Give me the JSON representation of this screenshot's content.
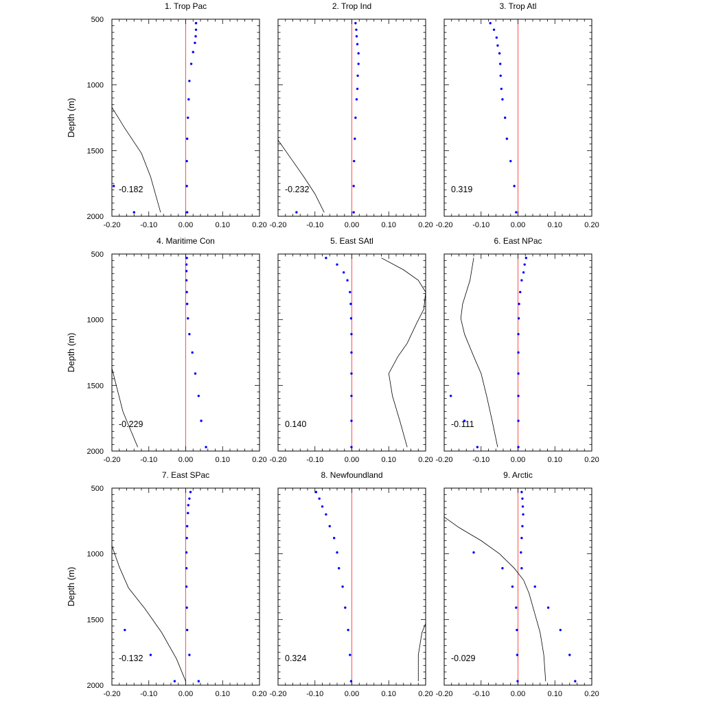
{
  "figure": {
    "y_axis_label": "Depth (m)",
    "x_ticks": [
      "-0.20",
      "-0.10",
      "0.00",
      "0.10",
      "0.20"
    ],
    "y_ticks": [
      "500",
      "1000",
      "1500",
      "2000"
    ],
    "colors": {
      "dots": "#0000ff",
      "zero_line": "#ff4d4d",
      "curve": "#000000",
      "axes": "#000000"
    }
  },
  "chart_data": [
    {
      "type": "scatter",
      "title": "1. Trop Pac",
      "annotation": "-0.182",
      "xlim": [
        -0.2,
        0.2
      ],
      "ylim": [
        500,
        2000
      ],
      "y_inverted": true,
      "points": [
        [
          0.028,
          530
        ],
        [
          0.028,
          580
        ],
        [
          0.027,
          630
        ],
        [
          0.025,
          680
        ],
        [
          0.02,
          750
        ],
        [
          0.015,
          840
        ],
        [
          0.01,
          970
        ],
        [
          0.008,
          1110
        ],
        [
          0.006,
          1250
        ],
        [
          0.004,
          1410
        ],
        [
          0.003,
          1580
        ],
        [
          0.003,
          1770
        ],
        [
          -0.195,
          1770
        ],
        [
          0.004,
          1970
        ],
        [
          -0.14,
          1970
        ]
      ],
      "line": [
        [
          -0.2,
          1170
        ],
        [
          -0.165,
          1330
        ],
        [
          -0.12,
          1520
        ],
        [
          -0.095,
          1700
        ],
        [
          -0.068,
          1970
        ]
      ]
    },
    {
      "type": "scatter",
      "title": "2. Trop Ind",
      "annotation": "-0.232",
      "xlim": [
        -0.2,
        0.2
      ],
      "ylim": [
        500,
        2000
      ],
      "y_inverted": true,
      "points": [
        [
          0.01,
          530
        ],
        [
          0.012,
          580
        ],
        [
          0.013,
          630
        ],
        [
          0.015,
          690
        ],
        [
          0.018,
          760
        ],
        [
          0.018,
          840
        ],
        [
          0.016,
          930
        ],
        [
          0.015,
          1030
        ],
        [
          0.013,
          1110
        ],
        [
          0.01,
          1250
        ],
        [
          0.008,
          1410
        ],
        [
          0.006,
          1580
        ],
        [
          0.005,
          1770
        ],
        [
          0.005,
          1970
        ],
        [
          -0.15,
          1970
        ]
      ],
      "line": [
        [
          -0.2,
          1420
        ],
        [
          -0.165,
          1560
        ],
        [
          -0.13,
          1700
        ],
        [
          -0.1,
          1830
        ],
        [
          -0.075,
          1970
        ]
      ]
    },
    {
      "type": "scatter",
      "title": "3. Trop Atl",
      "annotation": "0.319",
      "xlim": [
        -0.2,
        0.2
      ],
      "ylim": [
        500,
        2000
      ],
      "y_inverted": true,
      "points": [
        [
          -0.075,
          530
        ],
        [
          -0.065,
          580
        ],
        [
          -0.058,
          640
        ],
        [
          -0.055,
          700
        ],
        [
          -0.05,
          760
        ],
        [
          -0.048,
          840
        ],
        [
          -0.047,
          930
        ],
        [
          -0.045,
          1030
        ],
        [
          -0.042,
          1110
        ],
        [
          -0.035,
          1250
        ],
        [
          -0.03,
          1410
        ],
        [
          -0.02,
          1580
        ],
        [
          -0.01,
          1770
        ],
        [
          -0.005,
          1970
        ]
      ],
      "line": []
    },
    {
      "type": "scatter",
      "title": "4. Maritime Con",
      "annotation": "-0.229",
      "xlim": [
        -0.2,
        0.2
      ],
      "ylim": [
        500,
        2000
      ],
      "y_inverted": true,
      "points": [
        [
          0.003,
          530
        ],
        [
          0.002,
          580
        ],
        [
          0.002,
          630
        ],
        [
          0.002,
          700
        ],
        [
          0.003,
          790
        ],
        [
          0.004,
          880
        ],
        [
          0.006,
          990
        ],
        [
          0.01,
          1110
        ],
        [
          0.018,
          1250
        ],
        [
          0.026,
          1410
        ],
        [
          0.035,
          1580
        ],
        [
          0.042,
          1770
        ],
        [
          0.055,
          1970
        ]
      ],
      "line": [
        [
          -0.2,
          1370
        ],
        [
          -0.17,
          1700
        ],
        [
          -0.13,
          1970
        ]
      ]
    },
    {
      "type": "scatter",
      "title": "5. East SAtl",
      "annotation": "0.140",
      "xlim": [
        -0.2,
        0.2
      ],
      "ylim": [
        500,
        2000
      ],
      "y_inverted": true,
      "points": [
        [
          -0.07,
          530
        ],
        [
          -0.04,
          580
        ],
        [
          -0.022,
          640
        ],
        [
          -0.012,
          700
        ],
        [
          -0.005,
          790
        ],
        [
          -0.003,
          880
        ],
        [
          -0.002,
          990
        ],
        [
          -0.001,
          1110
        ],
        [
          -0.001,
          1250
        ],
        [
          -0.001,
          1410
        ],
        [
          -0.001,
          1580
        ],
        [
          -0.001,
          1770
        ],
        [
          -0.001,
          1970
        ]
      ],
      "line": [
        [
          0.08,
          530
        ],
        [
          0.14,
          620
        ],
        [
          0.18,
          700
        ],
        [
          0.2,
          790
        ],
        [
          0.195,
          920
        ],
        [
          0.175,
          1030
        ],
        [
          0.15,
          1180
        ],
        [
          0.125,
          1280
        ],
        [
          0.1,
          1410
        ],
        [
          0.11,
          1580
        ],
        [
          0.13,
          1770
        ],
        [
          0.15,
          1970
        ]
      ]
    },
    {
      "type": "scatter",
      "title": "6. East NPac",
      "annotation": "-0.111",
      "xlim": [
        -0.2,
        0.2
      ],
      "ylim": [
        500,
        2000
      ],
      "y_inverted": true,
      "points": [
        [
          0.022,
          530
        ],
        [
          0.018,
          580
        ],
        [
          0.015,
          640
        ],
        [
          0.01,
          700
        ],
        [
          0.006,
          790
        ],
        [
          0.003,
          880
        ],
        [
          0.002,
          990
        ],
        [
          0.001,
          1110
        ],
        [
          0.001,
          1250
        ],
        [
          0.001,
          1410
        ],
        [
          0.001,
          1580
        ],
        [
          0.001,
          1770
        ],
        [
          0.001,
          1970
        ],
        [
          -0.182,
          1580
        ],
        [
          -0.145,
          1770
        ],
        [
          -0.11,
          1970
        ]
      ],
      "line": [
        [
          -0.12,
          530
        ],
        [
          -0.13,
          700
        ],
        [
          -0.15,
          880
        ],
        [
          -0.155,
          990
        ],
        [
          -0.145,
          1110
        ],
        [
          -0.12,
          1280
        ],
        [
          -0.1,
          1410
        ],
        [
          -0.085,
          1580
        ],
        [
          -0.07,
          1770
        ],
        [
          -0.055,
          1970
        ]
      ]
    },
    {
      "type": "scatter",
      "title": "7. East SPac",
      "annotation": "-0.132",
      "xlim": [
        -0.2,
        0.2
      ],
      "ylim": [
        500,
        2000
      ],
      "y_inverted": true,
      "points": [
        [
          0.013,
          530
        ],
        [
          0.01,
          580
        ],
        [
          0.007,
          630
        ],
        [
          0.006,
          690
        ],
        [
          0.004,
          790
        ],
        [
          0.003,
          880
        ],
        [
          0.002,
          990
        ],
        [
          0.002,
          1110
        ],
        [
          0.002,
          1250
        ],
        [
          0.003,
          1410
        ],
        [
          0.004,
          1580
        ],
        [
          0.01,
          1770
        ],
        [
          0.035,
          1970
        ],
        [
          -0.165,
          1580
        ],
        [
          -0.095,
          1770
        ],
        [
          -0.03,
          1970
        ]
      ],
      "line": [
        [
          -0.2,
          940
        ],
        [
          -0.18,
          1100
        ],
        [
          -0.155,
          1260
        ],
        [
          -0.11,
          1420
        ],
        [
          -0.065,
          1600
        ],
        [
          -0.025,
          1800
        ],
        [
          0.0,
          1970
        ]
      ]
    },
    {
      "type": "scatter",
      "title": "8. Newfoundland",
      "annotation": "0.324",
      "xlim": [
        -0.2,
        0.2
      ],
      "ylim": [
        500,
        2000
      ],
      "y_inverted": true,
      "points": [
        [
          -0.097,
          530
        ],
        [
          -0.088,
          580
        ],
        [
          -0.08,
          640
        ],
        [
          -0.07,
          700
        ],
        [
          -0.06,
          790
        ],
        [
          -0.048,
          880
        ],
        [
          -0.04,
          990
        ],
        [
          -0.035,
          1110
        ],
        [
          -0.025,
          1250
        ],
        [
          -0.018,
          1410
        ],
        [
          -0.01,
          1580
        ],
        [
          -0.005,
          1770
        ],
        [
          -0.002,
          1970
        ]
      ],
      "line": [
        [
          0.2,
          1530
        ],
        [
          0.19,
          1600
        ],
        [
          0.18,
          1770
        ],
        [
          0.18,
          1970
        ]
      ]
    },
    {
      "type": "scatter",
      "title": "9. Arctic",
      "annotation": "-0.029",
      "xlim": [
        -0.2,
        0.2
      ],
      "ylim": [
        500,
        2000
      ],
      "y_inverted": true,
      "points": [
        [
          0.01,
          530
        ],
        [
          0.012,
          580
        ],
        [
          0.013,
          640
        ],
        [
          0.014,
          700
        ],
        [
          0.012,
          790
        ],
        [
          0.01,
          880
        ],
        [
          0.008,
          990
        ],
        [
          0.01,
          1110
        ],
        [
          -0.12,
          990
        ],
        [
          -0.042,
          1110
        ],
        [
          -0.015,
          1250
        ],
        [
          0.046,
          1250
        ],
        [
          -0.005,
          1410
        ],
        [
          0.082,
          1410
        ],
        [
          -0.003,
          1580
        ],
        [
          0.115,
          1580
        ],
        [
          -0.002,
          1770
        ],
        [
          0.14,
          1770
        ],
        [
          -0.001,
          1970
        ],
        [
          0.155,
          1970
        ]
      ],
      "line": [
        [
          -0.2,
          720
        ],
        [
          -0.16,
          800
        ],
        [
          -0.1,
          900
        ],
        [
          -0.05,
          1000
        ],
        [
          -0.01,
          1110
        ],
        [
          0.015,
          1200
        ],
        [
          0.03,
          1300
        ],
        [
          0.045,
          1450
        ],
        [
          0.06,
          1600
        ],
        [
          0.07,
          1770
        ],
        [
          0.075,
          1970
        ]
      ]
    }
  ]
}
